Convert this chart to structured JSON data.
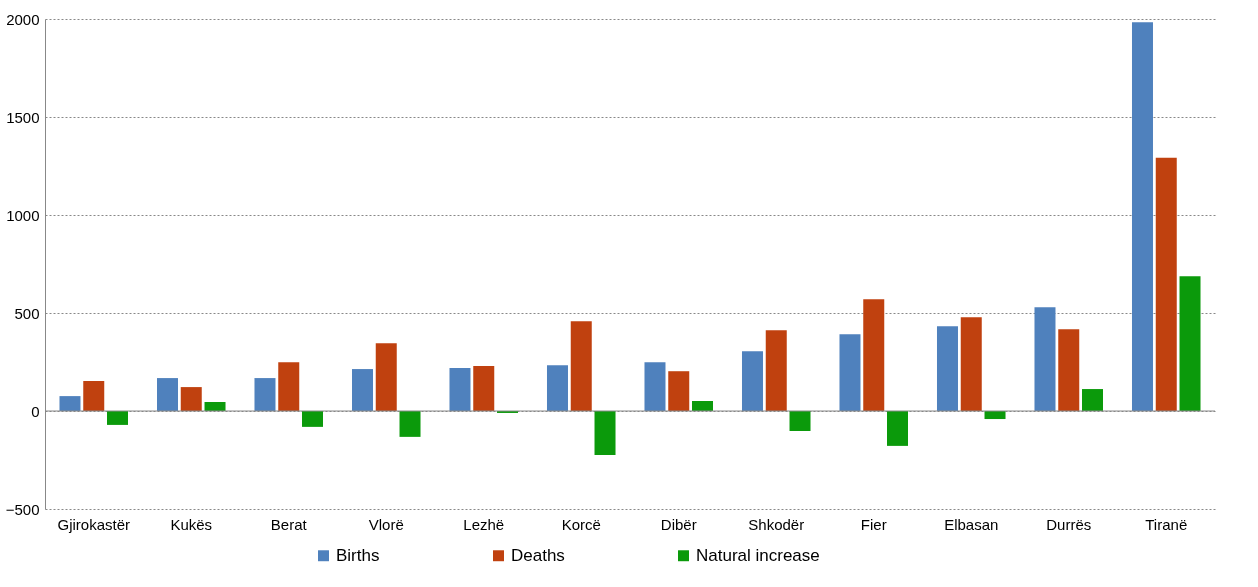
{
  "chart_data": {
    "type": "bar",
    "categories": [
      "Gjirokastër",
      "Kukës",
      "Berat",
      "Vlorë",
      "Lezhë",
      "Korcë",
      "Dibër",
      "Shkodër",
      "Fier",
      "Elbasan",
      "Durrës",
      "Tiranë"
    ],
    "series": [
      {
        "name": "Births",
        "color": "#4f81bd",
        "values": [
          76,
          168,
          168,
          214,
          219,
          234,
          249,
          305,
          392,
          432,
          529,
          1984
        ]
      },
      {
        "name": "Deaths",
        "color": "#c0410f",
        "values": [
          153,
          122,
          249,
          346,
          229,
          458,
          203,
          412,
          570,
          478,
          417,
          1292
        ]
      },
      {
        "name": "Natural increase",
        "color": "#0b9a0b",
        "values": [
          -71,
          46,
          -81,
          -132,
          -10,
          -224,
          51,
          -102,
          -178,
          -41,
          112,
          687
        ]
      }
    ],
    "ylim": [
      -500,
      2000
    ],
    "yticks": [
      -500,
      0,
      500,
      1000,
      1500,
      2000
    ],
    "grid": "y",
    "legend": "bottom"
  }
}
